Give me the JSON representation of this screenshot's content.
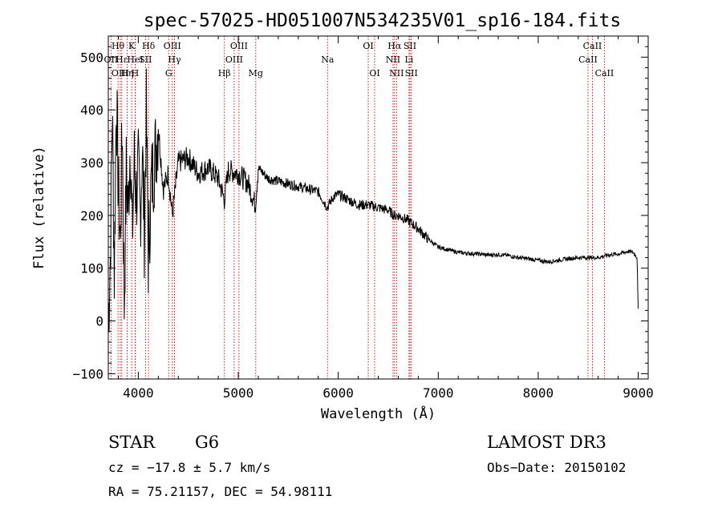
{
  "chart_data": {
    "type": "line",
    "title": "spec-57025-HD051007N534235V01_sp16-184.fits",
    "xlabel": "Wavelength (Å)",
    "ylabel": "Flux (relative)",
    "xlim": [
      3700,
      9100
    ],
    "ylim": [
      -110,
      540
    ],
    "xticks": [
      4000,
      5000,
      6000,
      7000,
      8000,
      9000
    ],
    "yticks": [
      -100,
      0,
      100,
      200,
      300,
      400,
      500
    ],
    "grid": false,
    "colors": {
      "line": "#000000",
      "markers": "#cc0000",
      "axes": "#000000"
    },
    "series": [
      {
        "name": "flux",
        "x": [
          3700,
          3720,
          3740,
          3760,
          3780,
          3800,
          3820,
          3840,
          3860,
          3880,
          3900,
          3920,
          3940,
          3960,
          3980,
          4000,
          4020,
          4040,
          4060,
          4080,
          4100,
          4130,
          4160,
          4200,
          4250,
          4300,
          4340,
          4400,
          4500,
          4600,
          4700,
          4800,
          4860,
          4900,
          5000,
          5100,
          5170,
          5200,
          5300,
          5400,
          5500,
          5600,
          5700,
          5800,
          5890,
          5950,
          6000,
          6100,
          6200,
          6300,
          6400,
          6500,
          6560,
          6600,
          6700,
          6800,
          6900,
          7000,
          7100,
          7200,
          7300,
          7400,
          7500,
          7600,
          7700,
          7800,
          7900,
          8000,
          8100,
          8200,
          8300,
          8400,
          8500,
          8600,
          8700,
          8800,
          8900,
          8950,
          8990,
          9000
        ],
        "y": [
          0,
          120,
          400,
          90,
          430,
          250,
          150,
          380,
          30,
          280,
          210,
          350,
          160,
          300,
          240,
          280,
          200,
          330,
          170,
          390,
          120,
          260,
          300,
          370,
          250,
          280,
          200,
          300,
          310,
          280,
          290,
          270,
          230,
          285,
          280,
          260,
          220,
          290,
          270,
          265,
          260,
          255,
          250,
          245,
          215,
          235,
          240,
          230,
          220,
          220,
          215,
          210,
          200,
          200,
          190,
          175,
          155,
          140,
          135,
          130,
          128,
          127,
          125,
          126,
          124,
          120,
          118,
          115,
          112,
          115,
          118,
          120,
          120,
          120,
          125,
          127,
          132,
          130,
          120,
          20
        ]
      }
    ],
    "lines": [
      {
        "label": "OII",
        "x": 3727,
        "row": 1
      },
      {
        "label": "Hθ",
        "x": 3797,
        "row": 0
      },
      {
        "label": "OIII",
        "x": 3820,
        "row": 2
      },
      {
        "label": "Hε",
        "x": 3835,
        "row": 1
      },
      {
        "label": "Hη",
        "x": 3889,
        "row": 2
      },
      {
        "label": "K",
        "x": 3934,
        "row": 0
      },
      {
        "label": "HeI",
        "x": 3970,
        "row": 1
      },
      {
        "label": "H",
        "x": 3968,
        "row": 2
      },
      {
        "label": "SII",
        "x": 4072,
        "row": 1
      },
      {
        "label": "Hδ",
        "x": 4102,
        "row": 0
      },
      {
        "label": "OIII",
        "x": 4340,
        "row": 0
      },
      {
        "label": "Hγ",
        "x": 4362,
        "row": 1
      },
      {
        "label": "G",
        "x": 4304,
        "row": 2
      },
      {
        "label": "Hβ",
        "x": 4861,
        "row": 2
      },
      {
        "label": "OIII",
        "x": 5007,
        "row": 0
      },
      {
        "label": "OIII",
        "x": 4959,
        "row": 1
      },
      {
        "label": "Mg",
        "x": 5175,
        "row": 2
      },
      {
        "label": "Na",
        "x": 5893,
        "row": 1
      },
      {
        "label": "OI",
        "x": 6300,
        "row": 0
      },
      {
        "label": "OI",
        "x": 6364,
        "row": 2
      },
      {
        "label": "Hα",
        "x": 6563,
        "row": 0
      },
      {
        "label": "NII",
        "x": 6548,
        "row": 1
      },
      {
        "label": "NII",
        "x": 6583,
        "row": 2
      },
      {
        "label": "SII",
        "x": 6717,
        "row": 0
      },
      {
        "label": "Li",
        "x": 6708,
        "row": 1
      },
      {
        "label": "SII",
        "x": 6731,
        "row": 2
      },
      {
        "label": "CaII",
        "x": 8542,
        "row": 0
      },
      {
        "label": "CaII",
        "x": 8498,
        "row": 1
      },
      {
        "label": "CaII",
        "x": 8662,
        "row": 2
      }
    ]
  },
  "info": {
    "object_class": "STAR",
    "subclass": "G6",
    "survey": "LAMOST DR3",
    "cz": "cz = −17.8 ± 5.7 km/s",
    "obs_date": "Obs−Date: 20150102",
    "radec": "RA =  75.21157, DEC =  54.98111"
  }
}
